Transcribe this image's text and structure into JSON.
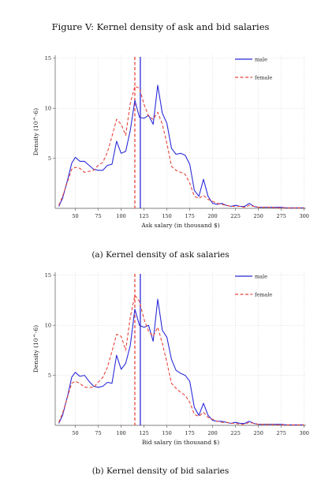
{
  "figure_title": "Figure V: Kernel density of ask and bid salaries",
  "chart_data": [
    {
      "type": "line",
      "caption": "(a) Kernel density of ask salaries",
      "xlabel": "Ask salary (in thousand $)",
      "ylabel": "Density (10^-6)",
      "xlim": [
        28,
        302
      ],
      "ylim": [
        0,
        15.3
      ],
      "xticks": [
        50,
        75,
        100,
        125,
        150,
        175,
        200,
        225,
        250,
        275,
        300
      ],
      "yticks": [
        5,
        10,
        15
      ],
      "grid": true,
      "legend_position": "top-right",
      "series": [
        {
          "name": "male",
          "color": "#2b2bd9",
          "dash": "solid",
          "x": [
            32,
            36,
            42,
            46,
            50,
            55,
            60,
            65,
            70,
            75,
            80,
            85,
            90,
            95,
            100,
            105,
            110,
            115,
            120,
            125,
            130,
            135,
            140,
            145,
            150,
            155,
            160,
            165,
            170,
            175,
            180,
            185,
            190,
            195,
            200,
            205,
            210,
            215,
            220,
            225,
            230,
            235,
            240,
            245,
            250,
            255,
            260,
            265,
            270,
            275,
            280,
            285,
            290,
            295,
            300
          ],
          "y": [
            0.2,
            1.0,
            3.0,
            4.5,
            5.1,
            4.7,
            4.7,
            4.3,
            3.9,
            3.8,
            3.8,
            4.3,
            4.4,
            6.7,
            5.5,
            5.7,
            7.8,
            10.8,
            9.1,
            9.0,
            9.3,
            8.4,
            12.3,
            9.5,
            8.5,
            6.0,
            5.4,
            5.5,
            5.3,
            4.4,
            1.8,
            1.2,
            2.9,
            1.2,
            0.5,
            0.4,
            0.5,
            0.3,
            0.2,
            0.3,
            0.2,
            0.2,
            0.5,
            0.2,
            0.1,
            0.1,
            0.1,
            0.1,
            0.1,
            0.1,
            0.05,
            0.05,
            0.05,
            0.05,
            0.05
          ]
        },
        {
          "name": "female",
          "color": "#e8453c",
          "dash": "dashed",
          "x": [
            32,
            36,
            42,
            46,
            50,
            55,
            60,
            65,
            70,
            75,
            80,
            85,
            90,
            95,
            100,
            105,
            110,
            115,
            120,
            125,
            130,
            135,
            140,
            145,
            150,
            155,
            160,
            165,
            170,
            175,
            180,
            185,
            190,
            195,
            200,
            205,
            210,
            215,
            220,
            225,
            230,
            235,
            240,
            245,
            250,
            255,
            260,
            265,
            270,
            275,
            280,
            285,
            290,
            295,
            300
          ],
          "y": [
            0.3,
            1.2,
            2.8,
            3.9,
            4.1,
            4.0,
            3.6,
            3.7,
            3.8,
            4.3,
            4.6,
            5.6,
            7.2,
            8.9,
            8.4,
            7.3,
            10.5,
            12.2,
            12.0,
            10.4,
            9.2,
            8.9,
            9.6,
            8.4,
            6.5,
            4.2,
            3.8,
            3.6,
            3.4,
            2.5,
            1.2,
            1.0,
            1.3,
            0.9,
            0.7,
            0.5,
            0.4,
            0.3,
            0.2,
            0.2,
            0.2,
            0.1,
            0.3,
            0.2,
            0.1,
            0.1,
            0.1,
            0.1,
            0.05,
            0.05,
            0.05,
            0.05,
            0.05,
            0.05,
            0.05
          ]
        }
      ],
      "vlines": [
        {
          "series": "male",
          "x": 121,
          "color": "#2b2bd9",
          "dash": "solid"
        },
        {
          "series": "female",
          "x": 115,
          "color": "#e8453c",
          "dash": "dashed"
        }
      ]
    },
    {
      "type": "line",
      "caption": "(b) Kernel density of bid salaries",
      "xlabel": "Bid salary (in thousand $)",
      "ylabel": "Density (10^-6)",
      "xlim": [
        28,
        302
      ],
      "ylim": [
        0,
        15.3
      ],
      "xticks": [
        50,
        75,
        100,
        125,
        150,
        175,
        200,
        225,
        250,
        275,
        300
      ],
      "yticks": [
        5,
        10,
        15
      ],
      "grid": true,
      "legend_position": "top-right",
      "series": [
        {
          "name": "male",
          "color": "#2b2bd9",
          "dash": "solid",
          "x": [
            32,
            36,
            42,
            46,
            50,
            55,
            60,
            65,
            70,
            75,
            80,
            85,
            90,
            95,
            100,
            105,
            110,
            115,
            120,
            125,
            130,
            135,
            140,
            145,
            150,
            155,
            160,
            165,
            170,
            175,
            180,
            185,
            190,
            195,
            200,
            205,
            210,
            215,
            220,
            225,
            230,
            235,
            240,
            245,
            250,
            255,
            260,
            265,
            270,
            275,
            280,
            285,
            290,
            295,
            300
          ],
          "y": [
            0.2,
            1.0,
            3.1,
            4.8,
            5.3,
            4.9,
            5.0,
            4.4,
            3.9,
            3.8,
            3.9,
            4.3,
            4.2,
            7.0,
            5.6,
            6.2,
            8.0,
            11.6,
            10.0,
            9.8,
            10.0,
            8.4,
            12.6,
            9.5,
            8.8,
            6.6,
            5.5,
            5.2,
            5.0,
            4.4,
            1.8,
            1.0,
            2.2,
            1.0,
            0.5,
            0.4,
            0.4,
            0.3,
            0.2,
            0.3,
            0.2,
            0.2,
            0.4,
            0.2,
            0.1,
            0.1,
            0.1,
            0.1,
            0.1,
            0.1,
            0.05,
            0.05,
            0.05,
            0.05,
            0.05
          ]
        },
        {
          "name": "female",
          "color": "#e8453c",
          "dash": "dashed",
          "x": [
            32,
            36,
            42,
            46,
            50,
            55,
            60,
            65,
            70,
            75,
            80,
            85,
            90,
            95,
            100,
            105,
            110,
            115,
            120,
            125,
            130,
            135,
            140,
            145,
            150,
            155,
            160,
            165,
            170,
            175,
            180,
            185,
            190,
            195,
            200,
            205,
            210,
            215,
            220,
            225,
            230,
            235,
            240,
            245,
            250,
            255,
            260,
            265,
            270,
            275,
            280,
            285,
            290,
            295,
            300
          ],
          "y": [
            0.3,
            1.2,
            3.0,
            4.2,
            4.4,
            4.2,
            3.8,
            3.8,
            3.8,
            4.3,
            4.8,
            5.8,
            7.4,
            9.1,
            8.9,
            7.5,
            10.8,
            13.0,
            12.4,
            10.6,
            9.4,
            8.9,
            9.8,
            8.2,
            6.3,
            4.2,
            3.7,
            3.3,
            3.0,
            2.3,
            1.1,
            0.9,
            1.3,
            0.8,
            0.6,
            0.4,
            0.3,
            0.3,
            0.2,
            0.2,
            0.1,
            0.1,
            0.3,
            0.2,
            0.1,
            0.1,
            0.1,
            0.1,
            0.05,
            0.05,
            0.05,
            0.05,
            0.05,
            0.05,
            0.05
          ]
        }
      ],
      "vlines": [
        {
          "series": "male",
          "x": 121,
          "color": "#2b2bd9",
          "dash": "solid"
        },
        {
          "series": "female",
          "x": 115,
          "color": "#e8453c",
          "dash": "dashed"
        }
      ]
    }
  ]
}
